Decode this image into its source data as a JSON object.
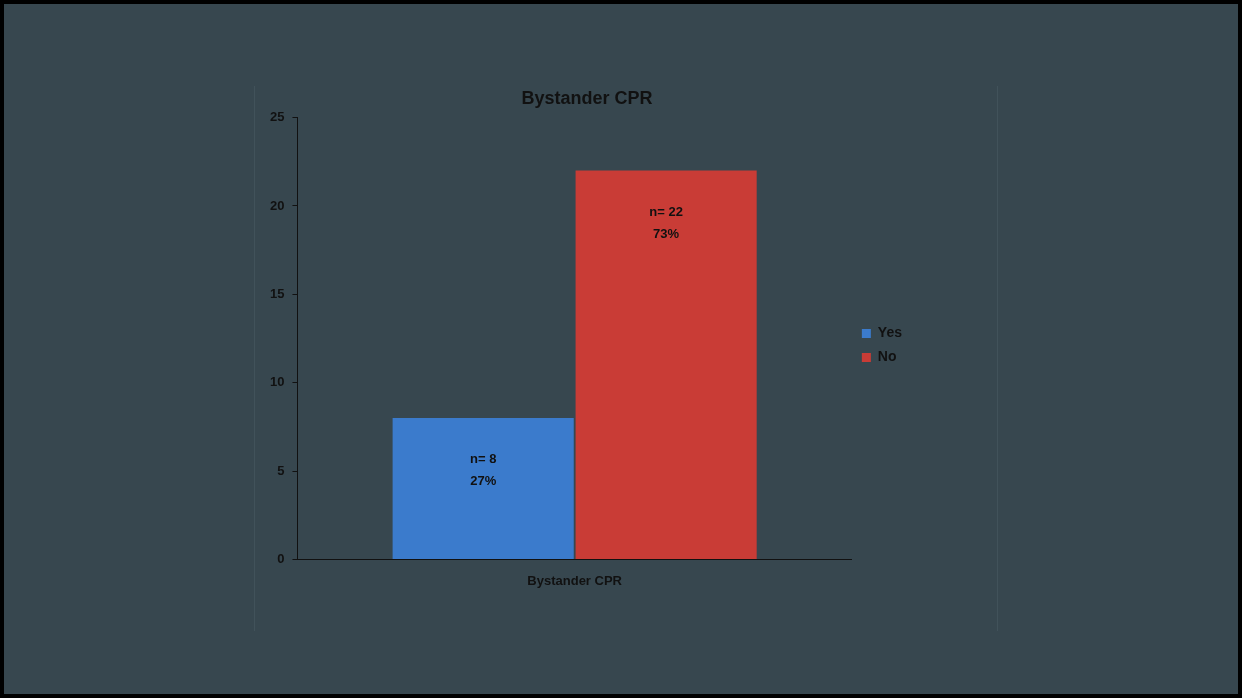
{
  "chart_data": {
    "type": "bar",
    "title": "Bystander CPR",
    "categories": [
      "Bystander CPR"
    ],
    "series": [
      {
        "name": "Yes",
        "color": "#3b7bcc",
        "values": [
          8
        ],
        "value_labels": [
          "n= 8\n27%"
        ]
      },
      {
        "name": "No",
        "color": "#c93c36",
        "values": [
          22
        ],
        "value_labels": [
          "n= 22\n73%"
        ]
      }
    ],
    "ylim": [
      0,
      25
    ],
    "yticks": [
      0,
      5,
      10,
      15,
      20,
      25
    ],
    "grid": false,
    "legend": "right"
  }
}
